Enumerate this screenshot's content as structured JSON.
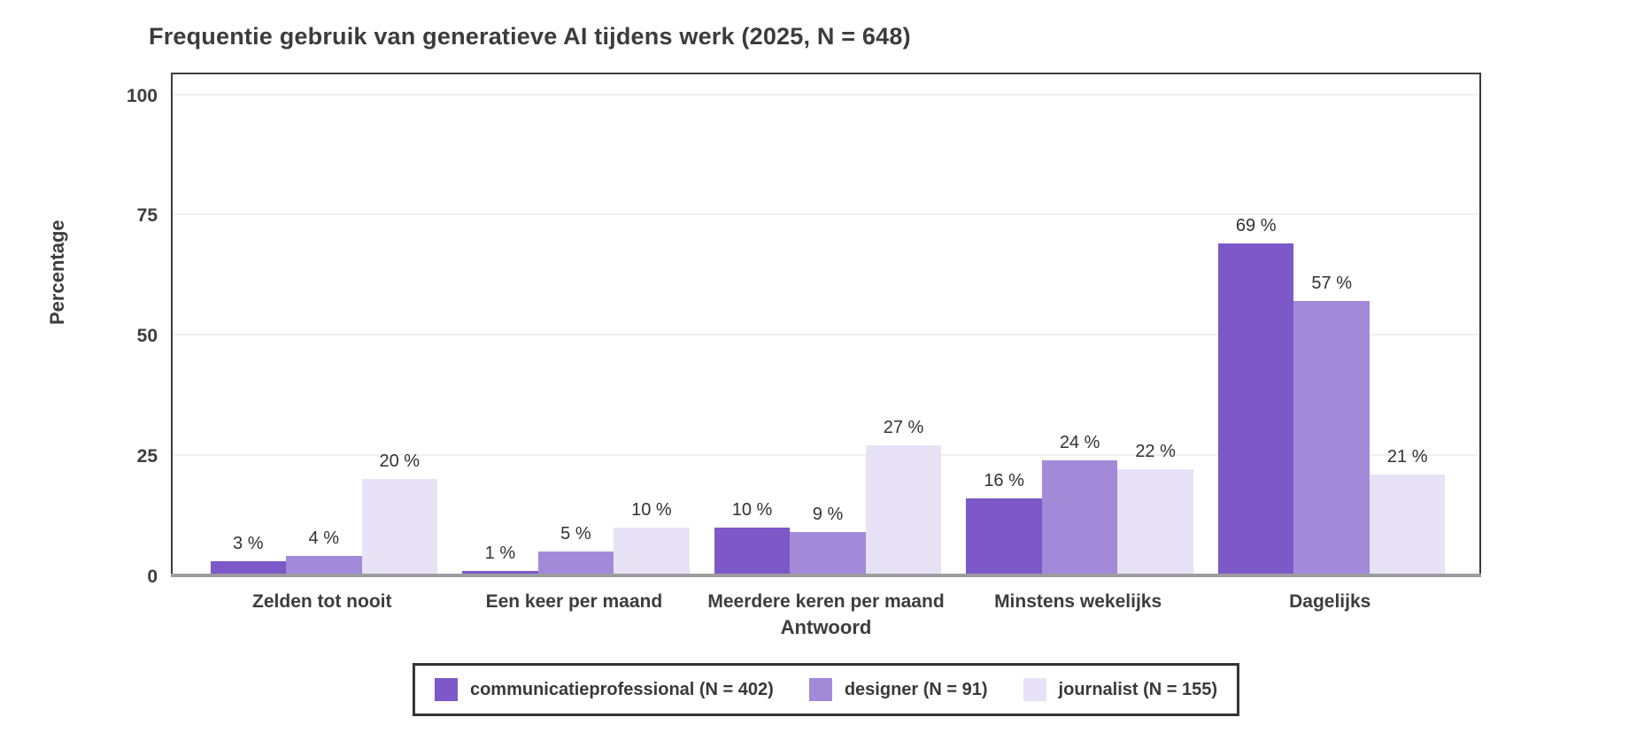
{
  "chart_data": {
    "type": "bar",
    "title": "Frequentie gebruik van generatieve AI tijdens werk (2025, N = 648)",
    "categories": [
      "Zelden tot nooit",
      "Een keer per maand",
      "Meerdere keren per maand",
      "Minstens wekelijks",
      "Dagelijks"
    ],
    "series": [
      {
        "name": "communicatieprofessional (N = 402)",
        "color": "#7c58c8",
        "values": [
          3,
          1,
          10,
          16,
          69
        ]
      },
      {
        "name": "designer (N = 91)",
        "color": "#a38ad8",
        "values": [
          4,
          5,
          9,
          24,
          57
        ]
      },
      {
        "name": "journalist (N = 155)",
        "color": "#e8e2f6",
        "values": [
          20,
          10,
          27,
          22,
          21
        ]
      }
    ],
    "value_suffix": " %",
    "xlabel": "Antwoord",
    "ylabel": "Percentage",
    "ylim": [
      0,
      100
    ],
    "yticks": [
      0,
      25,
      50,
      75,
      100
    ],
    "grid": "horizontal, light gray at 25/50/75/100",
    "legend_position": "bottom-center, boxed"
  },
  "colors": {
    "text": "#3d3d3d",
    "plot_border": "#3c3c3c",
    "baseline": "#9d9da0",
    "gridline": "#f0eff2",
    "background": "#ffffff"
  }
}
